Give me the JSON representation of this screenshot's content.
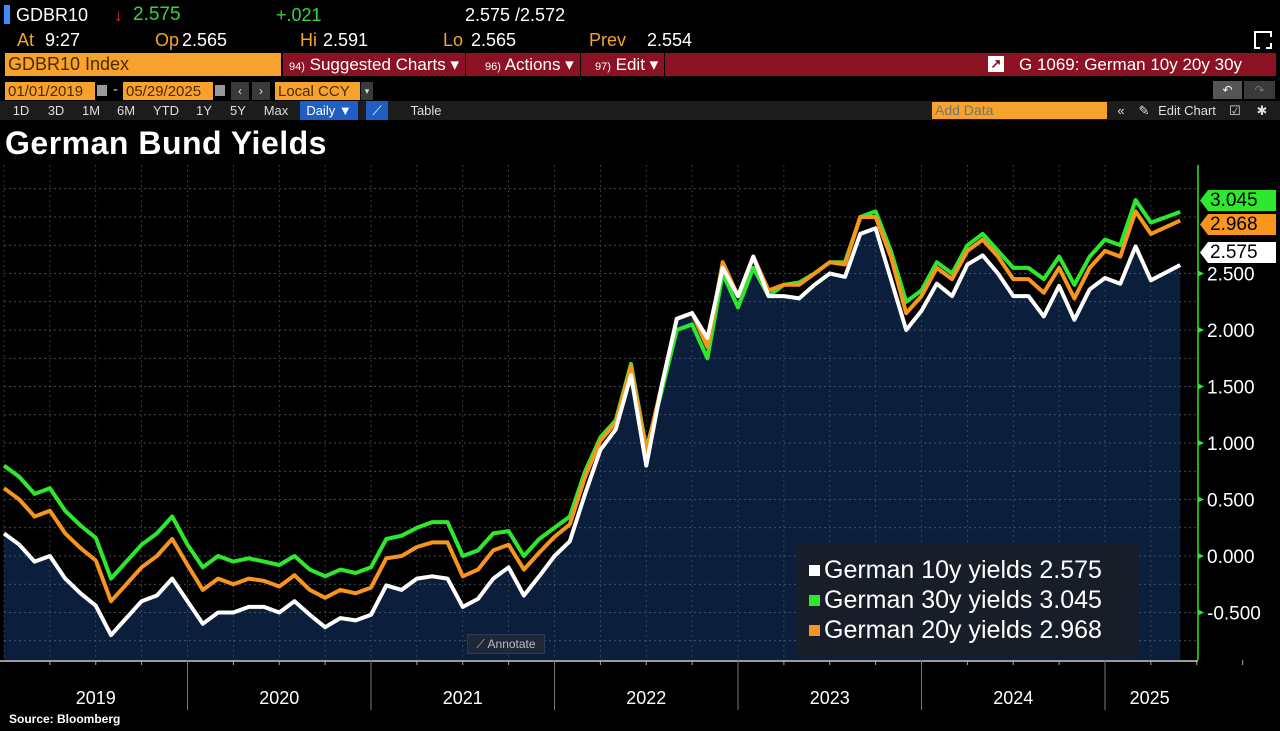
{
  "quote": {
    "ticker": "GDBR10",
    "arrow": "↓",
    "last": "2.575",
    "change": "+.021",
    "bid_ask": "2.575 /2.572",
    "at_label": "At",
    "at": "9:27",
    "op_label": "Op",
    "op": "2.565",
    "hi_label": "Hi",
    "hi": "2.591",
    "lo_label": "Lo",
    "lo": "2.565",
    "prev_label": "Prev",
    "prev": "2.554"
  },
  "security_input": "GDBR10 Index",
  "menus": [
    {
      "num": "94)",
      "label": "Suggested Charts ▾"
    },
    {
      "num": "96)",
      "label": "Actions ▾"
    },
    {
      "num": "97)",
      "label": "Edit ▾"
    }
  ],
  "chart_ref": "G 1069: German 10y 20y 30y",
  "date_start": "01/01/2019",
  "date_sep": "-",
  "date_end": "05/29/2025",
  "currency": "Local CCY",
  "periods": [
    "1D",
    "3D",
    "1M",
    "6M",
    "YTD",
    "1Y",
    "5Y",
    "Max"
  ],
  "frequency": "Daily ▼",
  "table_label": "Table",
  "add_data_placeholder": "Add Data",
  "edit_chart": "Edit Chart",
  "annotate": "Annotate",
  "source": "Source: Bloomberg",
  "colors": {
    "ten": "#ffffff",
    "thirty": "#2ee82e",
    "twenty": "#f7951e",
    "area": "#0b1f3c",
    "menubar": "#8a1223",
    "orange": "#f7a22c"
  },
  "chart_data": {
    "type": "line",
    "title": "German Bund Yields",
    "ylim": [
      -0.85,
      3.45
    ],
    "yticks": [
      "-0.500",
      "0.000",
      "0.500",
      "1.000",
      "1.500",
      "2.000",
      "2.500"
    ],
    "xticks": [
      "2019",
      "2020",
      "2021",
      "2022",
      "2023",
      "2024",
      "2025"
    ],
    "grid": true,
    "legend_position": "bottom-right",
    "x": [
      "2019-01",
      "2019-02",
      "2019-03",
      "2019-04",
      "2019-05",
      "2019-06",
      "2019-07",
      "2019-08",
      "2019-09",
      "2019-10",
      "2019-11",
      "2019-12",
      "2020-01",
      "2020-02",
      "2020-03",
      "2020-04",
      "2020-05",
      "2020-06",
      "2020-07",
      "2020-08",
      "2020-09",
      "2020-10",
      "2020-11",
      "2020-12",
      "2021-01",
      "2021-02",
      "2021-03",
      "2021-04",
      "2021-05",
      "2021-06",
      "2021-07",
      "2021-08",
      "2021-09",
      "2021-10",
      "2021-11",
      "2021-12",
      "2022-01",
      "2022-02",
      "2022-03",
      "2022-04",
      "2022-05",
      "2022-06",
      "2022-07",
      "2022-08",
      "2022-09",
      "2022-10",
      "2022-11",
      "2022-12",
      "2023-01",
      "2023-02",
      "2023-03",
      "2023-04",
      "2023-05",
      "2023-06",
      "2023-07",
      "2023-08",
      "2023-09",
      "2023-10",
      "2023-11",
      "2023-12",
      "2024-01",
      "2024-02",
      "2024-03",
      "2024-04",
      "2024-05",
      "2024-06",
      "2024-07",
      "2024-08",
      "2024-09",
      "2024-10",
      "2024-11",
      "2024-12",
      "2025-01",
      "2025-02",
      "2025-03",
      "2025-04",
      "2025-05-29"
    ],
    "series": [
      {
        "name": "German 10y yields",
        "last": "2.575",
        "color": "#ffffff",
        "values": [
          0.2,
          0.1,
          -0.05,
          0.0,
          -0.2,
          -0.33,
          -0.44,
          -0.7,
          -0.55,
          -0.4,
          -0.35,
          -0.2,
          -0.4,
          -0.6,
          -0.5,
          -0.5,
          -0.45,
          -0.45,
          -0.5,
          -0.4,
          -0.52,
          -0.63,
          -0.55,
          -0.57,
          -0.52,
          -0.26,
          -0.3,
          -0.2,
          -0.18,
          -0.2,
          -0.45,
          -0.38,
          -0.2,
          -0.1,
          -0.35,
          -0.18,
          0.0,
          0.13,
          0.55,
          0.94,
          1.12,
          1.6,
          0.8,
          1.5,
          2.1,
          2.15,
          1.93,
          2.55,
          2.3,
          2.65,
          2.3,
          2.3,
          2.28,
          2.4,
          2.5,
          2.47,
          2.85,
          2.9,
          2.45,
          2.0,
          2.17,
          2.41,
          2.3,
          2.58,
          2.66,
          2.5,
          2.3,
          2.3,
          2.12,
          2.39,
          2.09,
          2.36,
          2.46,
          2.41,
          2.74,
          2.44,
          2.575
        ]
      },
      {
        "name": "German 30y yields",
        "last": "3.045",
        "color": "#2ee82e",
        "values": [
          0.8,
          0.7,
          0.55,
          0.6,
          0.4,
          0.27,
          0.16,
          -0.2,
          -0.05,
          0.1,
          0.2,
          0.35,
          0.1,
          -0.1,
          0.0,
          -0.05,
          -0.02,
          -0.05,
          -0.08,
          0.0,
          -0.12,
          -0.18,
          -0.12,
          -0.15,
          -0.1,
          0.15,
          0.18,
          0.25,
          0.3,
          0.3,
          0.0,
          0.05,
          0.2,
          0.22,
          0.0,
          0.15,
          0.25,
          0.35,
          0.75,
          1.05,
          1.2,
          1.7,
          0.95,
          1.45,
          2.0,
          2.05,
          1.75,
          2.5,
          2.2,
          2.55,
          2.3,
          2.4,
          2.42,
          2.5,
          2.6,
          2.6,
          3.0,
          3.05,
          2.7,
          2.25,
          2.35,
          2.6,
          2.5,
          2.75,
          2.85,
          2.7,
          2.55,
          2.55,
          2.45,
          2.65,
          2.4,
          2.65,
          2.8,
          2.75,
          3.15,
          2.95,
          3.045
        ]
      },
      {
        "name": "German 20y yields",
        "last": "2.968",
        "color": "#f7951e",
        "values": [
          0.6,
          0.5,
          0.35,
          0.4,
          0.2,
          0.07,
          -0.04,
          -0.4,
          -0.25,
          -0.1,
          0.0,
          0.15,
          -0.08,
          -0.3,
          -0.2,
          -0.25,
          -0.2,
          -0.22,
          -0.27,
          -0.17,
          -0.3,
          -0.37,
          -0.3,
          -0.33,
          -0.28,
          -0.02,
          0.0,
          0.08,
          0.12,
          0.12,
          -0.18,
          -0.12,
          0.05,
          0.1,
          -0.12,
          0.03,
          0.17,
          0.28,
          0.7,
          1.02,
          1.18,
          1.68,
          0.92,
          1.5,
          2.1,
          2.15,
          1.85,
          2.6,
          2.3,
          2.65,
          2.35,
          2.4,
          2.4,
          2.5,
          2.6,
          2.58,
          3.0,
          3.0,
          2.65,
          2.15,
          2.3,
          2.55,
          2.45,
          2.7,
          2.8,
          2.65,
          2.45,
          2.45,
          2.33,
          2.55,
          2.28,
          2.55,
          2.7,
          2.65,
          3.05,
          2.85,
          2.968
        ]
      }
    ]
  }
}
